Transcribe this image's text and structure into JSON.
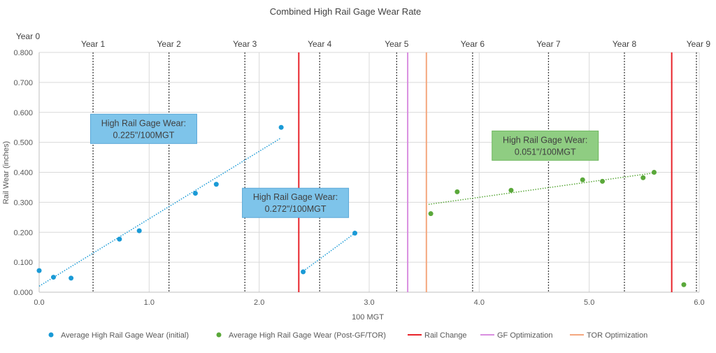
{
  "chart_data": {
    "type": "scatter",
    "title": "Combined High Rail Gage Wear Rate",
    "xlabel": "100 MGT",
    "ylabel": "Rail Wear (inches)",
    "xlim": [
      0,
      6
    ],
    "ylim": [
      0,
      0.8
    ],
    "x_ticks": [
      "0.0",
      "1.0",
      "2.0",
      "3.0",
      "4.0",
      "5.0",
      "6.0"
    ],
    "y_ticks": [
      "0.000",
      "0.100",
      "0.200",
      "0.300",
      "0.400",
      "0.500",
      "0.600",
      "0.700",
      "0.800"
    ],
    "grid": true,
    "legend_position": "bottom",
    "year_markers": [
      {
        "label": "Year 0",
        "x": 0.0
      },
      {
        "label": "Year 1",
        "x": 0.49
      },
      {
        "label": "Year 2",
        "x": 1.18
      },
      {
        "label": "Year 3",
        "x": 1.87
      },
      {
        "label": "Year 4",
        "x": 2.55
      },
      {
        "label": "Year 5",
        "x": 3.25
      },
      {
        "label": "Year 6",
        "x": 3.94
      },
      {
        "label": "Year 7",
        "x": 4.63
      },
      {
        "label": "Year 8",
        "x": 5.32
      },
      {
        "label": "Year 9",
        "x": 6.0
      }
    ],
    "series": [
      {
        "name": "Average High Rail Gage Wear (initial)",
        "color": "#1a9ad6",
        "points": [
          {
            "x": 0.0,
            "y": 0.072
          },
          {
            "x": 0.13,
            "y": 0.05
          },
          {
            "x": 0.29,
            "y": 0.047
          },
          {
            "x": 0.73,
            "y": 0.177
          },
          {
            "x": 0.91,
            "y": 0.205
          },
          {
            "x": 1.42,
            "y": 0.33
          },
          {
            "x": 1.61,
            "y": 0.36
          },
          {
            "x": 2.2,
            "y": 0.55
          },
          {
            "x": 2.4,
            "y": 0.068
          },
          {
            "x": 2.87,
            "y": 0.197
          }
        ]
      },
      {
        "name": "Average High Rail Gage Wear (Post-GF/TOR)",
        "color": "#5aa83a",
        "points": [
          {
            "x": 3.56,
            "y": 0.262
          },
          {
            "x": 3.8,
            "y": 0.335
          },
          {
            "x": 4.29,
            "y": 0.34
          },
          {
            "x": 4.94,
            "y": 0.375
          },
          {
            "x": 5.12,
            "y": 0.37
          },
          {
            "x": 5.49,
            "y": 0.382
          },
          {
            "x": 5.59,
            "y": 0.4
          },
          {
            "x": 5.86,
            "y": 0.025
          }
        ]
      }
    ],
    "trendlines": [
      {
        "color": "#1a9ad6",
        "x1": 0.0,
        "y1": 0.02,
        "x2": 2.2,
        "y2": 0.515
      },
      {
        "color": "#1a9ad6",
        "x1": 2.4,
        "y1": 0.07,
        "x2": 2.87,
        "y2": 0.197
      },
      {
        "color": "#5aa83a",
        "x1": 3.54,
        "y1": 0.293,
        "x2": 5.59,
        "y2": 0.398
      }
    ],
    "vertical_lines": [
      {
        "name": "Rail Change",
        "color": "#e8232a",
        "x": 2.36
      },
      {
        "name": "GF Optimization",
        "color": "#d98ee0",
        "x": 3.35
      },
      {
        "name": "TOR Optimization",
        "color": "#f4a77e",
        "x": 3.52
      },
      {
        "name": "Rail Change",
        "color": "#e8232a",
        "x": 5.75
      }
    ],
    "annotations": [
      {
        "line1": "High Rail Gage Wear:",
        "line2": "0.225\"/100MGT",
        "x": 0.95,
        "y": 0.545,
        "fill": "#7ec4ea",
        "stroke": "#5aa8d8"
      },
      {
        "line1": "High Rail Gage Wear:",
        "line2": "0.272\"/100MGT",
        "x": 2.33,
        "y": 0.298,
        "fill": "#7ec4ea",
        "stroke": "#5aa8d8"
      },
      {
        "line1": "High Rail Gage Wear:",
        "line2": "0.051\"/100MGT",
        "x": 4.6,
        "y": 0.489,
        "fill": "#8fcd82",
        "stroke": "#6db65d"
      }
    ],
    "legend": [
      {
        "label": "Average High Rail Gage Wear (initial)",
        "kind": "dot",
        "color": "#1a9ad6"
      },
      {
        "label": "Average High Rail Gage Wear (Post-GF/TOR)",
        "kind": "dot",
        "color": "#5aa83a"
      },
      {
        "label": "Rail Change",
        "kind": "line",
        "color": "#e8232a"
      },
      {
        "label": "GF Optimization",
        "kind": "line",
        "color": "#d98ee0"
      },
      {
        "label": "TOR Optimization",
        "kind": "line",
        "color": "#f4a77e"
      }
    ]
  }
}
